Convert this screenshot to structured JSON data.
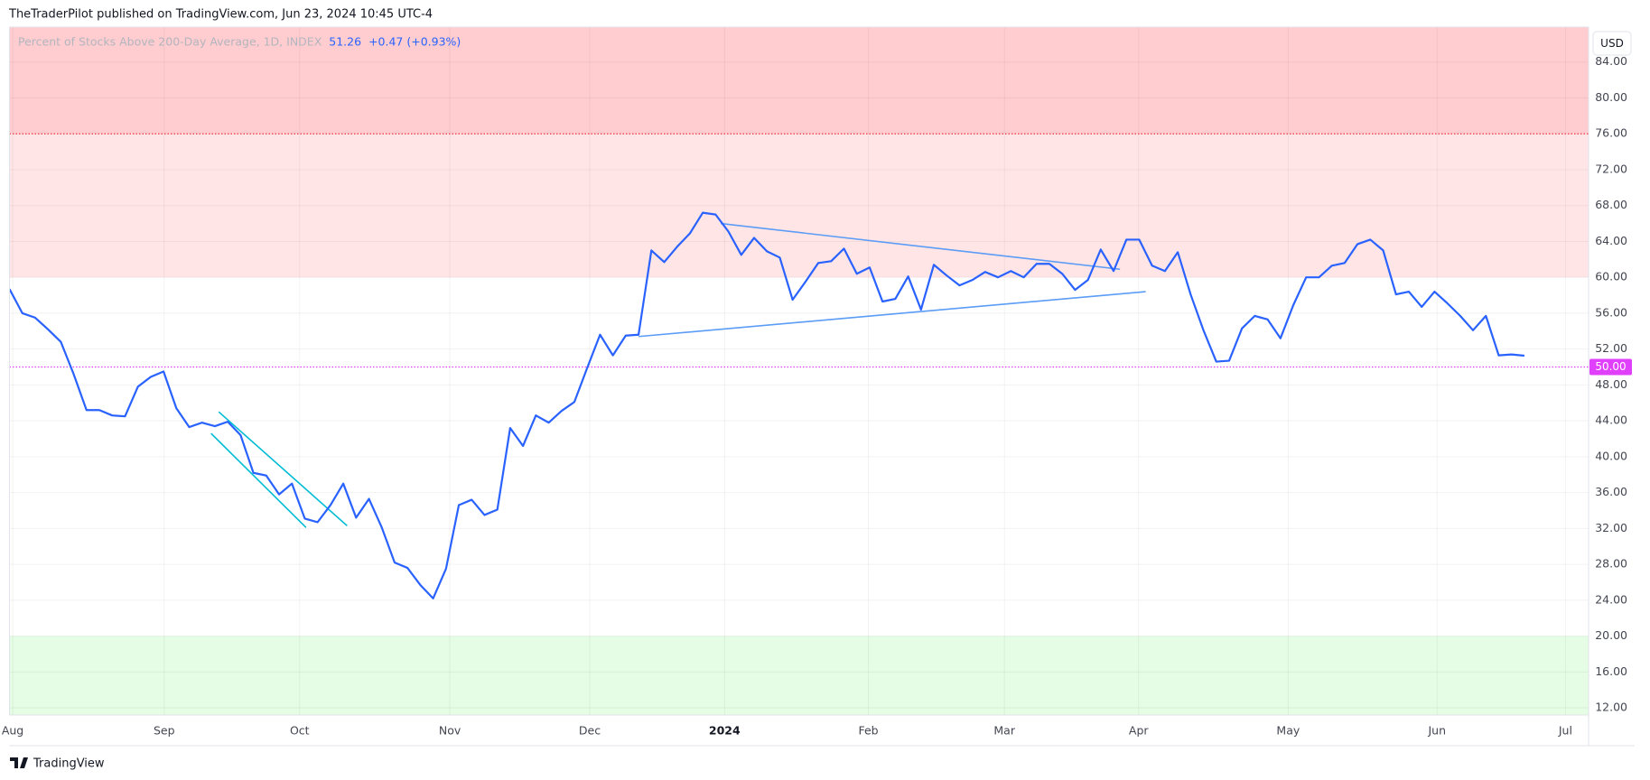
{
  "publisher": "TheTraderPilot published on TradingView.com, Jun 23, 2024 10:45 UTC-4",
  "brand": "TradingView",
  "chart_data": {
    "type": "line",
    "title": "Percent of Stocks Above 200-Day Average, 1D, INDEX",
    "change": "+0.47 (+0.93%)",
    "currency": "USD",
    "color": "#2962ff",
    "values": [
      58.7,
      56.0,
      55.5,
      54.2,
      52.8,
      49.2,
      45.2,
      45.2,
      44.6,
      44.5,
      47.8,
      48.9,
      49.5,
      45.4,
      43.3,
      43.8,
      43.4,
      43.9,
      42.4,
      38.2,
      37.9,
      35.8,
      37.0,
      33.1,
      32.7,
      34.6,
      37.0,
      33.2,
      35.3,
      32.1,
      28.2,
      27.6,
      25.7,
      24.2,
      27.5,
      34.6,
      35.2,
      33.5,
      34.1,
      43.2,
      41.2,
      44.6,
      43.8,
      45.1,
      46.1,
      49.9,
      53.6,
      51.3,
      53.5,
      53.6,
      63.0,
      61.7,
      63.4,
      64.9,
      67.2,
      67.0,
      65.1,
      62.5,
      64.4,
      62.9,
      62.2,
      57.5,
      59.5,
      61.6,
      61.8,
      63.2,
      60.4,
      61.1,
      57.3,
      57.6,
      60.1,
      56.4,
      61.4,
      60.2,
      59.1,
      59.7,
      60.6,
      60.0,
      60.7,
      60.0,
      61.5,
      61.5,
      60.4,
      58.6,
      59.7,
      63.1,
      60.7,
      64.2,
      64.2,
      61.3,
      60.7,
      62.8,
      58.1,
      54.1,
      50.6,
      50.7,
      54.3,
      55.7,
      55.3,
      53.2,
      56.9,
      60.0,
      60.0,
      61.3,
      61.6,
      63.7,
      64.2,
      63.0,
      58.1,
      58.4,
      56.7,
      58.4,
      57.1,
      55.7,
      54.1,
      55.7,
      51.3,
      51.4,
      51.26
    ],
    "xlim": [
      0,
      123
    ],
    "xticks": [
      {
        "value": 0.25,
        "label": "Aug"
      },
      {
        "value": 12.05,
        "label": "Sep"
      },
      {
        "value": 22.6,
        "label": "Oct"
      },
      {
        "value": 34.3,
        "label": "Nov"
      },
      {
        "value": 45.2,
        "label": "Dec"
      },
      {
        "value": 55.7,
        "label": "2024"
      },
      {
        "value": 66.9,
        "label": "Feb"
      },
      {
        "value": 77.5,
        "label": "Mar"
      },
      {
        "value": 87.95,
        "label": "Apr"
      },
      {
        "value": 99.6,
        "label": "May"
      },
      {
        "value": 111.2,
        "label": "Jun"
      },
      {
        "value": 121.2,
        "label": "Jul"
      }
    ],
    "ylim": [
      11.2,
      87.9
    ],
    "yticks": [
      {
        "value": 12,
        "label": "12.00"
      },
      {
        "value": 16,
        "label": "16.00"
      },
      {
        "value": 20,
        "label": "20.00"
      },
      {
        "value": 24,
        "label": "24.00"
      },
      {
        "value": 28,
        "label": "28.00"
      },
      {
        "value": 32,
        "label": "32.00"
      },
      {
        "value": 36,
        "label": "36.00"
      },
      {
        "value": 40,
        "label": "40.00"
      },
      {
        "value": 44,
        "label": "44.00"
      },
      {
        "value": 48,
        "label": "48.00"
      },
      {
        "value": 52,
        "label": "52.00"
      },
      {
        "value": 56,
        "label": "56.00"
      },
      {
        "value": 60,
        "label": "60.00"
      },
      {
        "value": 64,
        "label": "64.00"
      },
      {
        "value": 68,
        "label": "68.00"
      },
      {
        "value": 72,
        "label": "72.00"
      },
      {
        "value": 76,
        "label": "76.00"
      },
      {
        "value": 80,
        "label": "80.00"
      },
      {
        "value": 84,
        "label": "84.00"
      }
    ],
    "grid": true,
    "zones": [
      {
        "from": 76,
        "color": "#ffcdd0"
      },
      {
        "from": 60,
        "to": 76,
        "color": "#ffe5e6"
      },
      {
        "to": 20,
        "color": "#e4fde4"
      }
    ],
    "horizontal_lines": [
      {
        "value": 76,
        "color": "#f23645"
      },
      {
        "value": 50,
        "label": "50.00",
        "color": "#e040fb"
      }
    ],
    "trendlines": [
      {
        "color": "#00bcd4",
        "points": [
          [
            16.3,
            45.0
          ],
          [
            26.3,
            32.3
          ]
        ]
      },
      {
        "color": "#00bcd4",
        "points": [
          [
            15.7,
            42.6
          ],
          [
            23.1,
            32.1
          ]
        ]
      },
      {
        "color": "#5b9cf6",
        "points": [
          [
            55.4,
            66.0
          ],
          [
            86.5,
            60.9
          ]
        ]
      },
      {
        "color": "#5b9cf6",
        "points": [
          [
            49.0,
            53.4
          ],
          [
            88.5,
            58.4
          ]
        ]
      }
    ]
  }
}
